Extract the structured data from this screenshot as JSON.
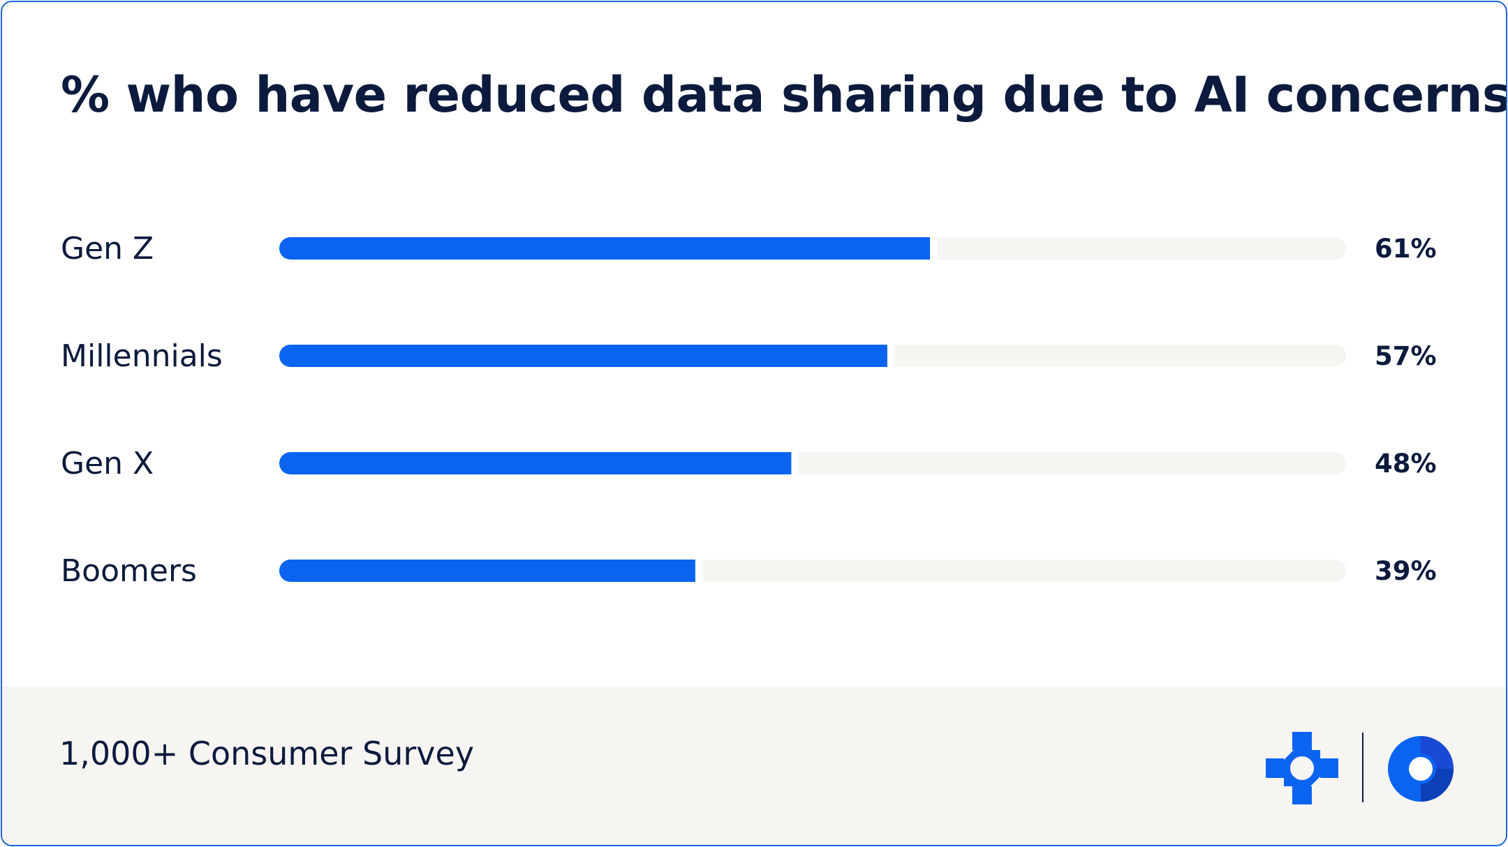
{
  "chart_data": {
    "type": "bar",
    "orientation": "horizontal",
    "title": "% who have reduced data sharing due to AI concerns",
    "categories": [
      "Gen Z",
      "Millennials",
      "Gen X",
      "Boomers"
    ],
    "values": [
      61,
      57,
      48,
      39
    ],
    "value_labels": [
      "61%",
      "57%",
      "48%",
      "39%"
    ],
    "xlim": [
      0,
      100
    ],
    "grid": false,
    "legend": "none",
    "colors": {
      "bar": "#0a64f0",
      "track": "#f6f5f2",
      "text": "#0c1a3d"
    }
  },
  "footer": {
    "note": "1,000+ Consumer Survey",
    "logos": [
      "cross-logo-icon",
      "ring-logo-icon"
    ]
  },
  "theme": {
    "border": "#1f63d9",
    "footer_bg": "#f6f5f2"
  }
}
